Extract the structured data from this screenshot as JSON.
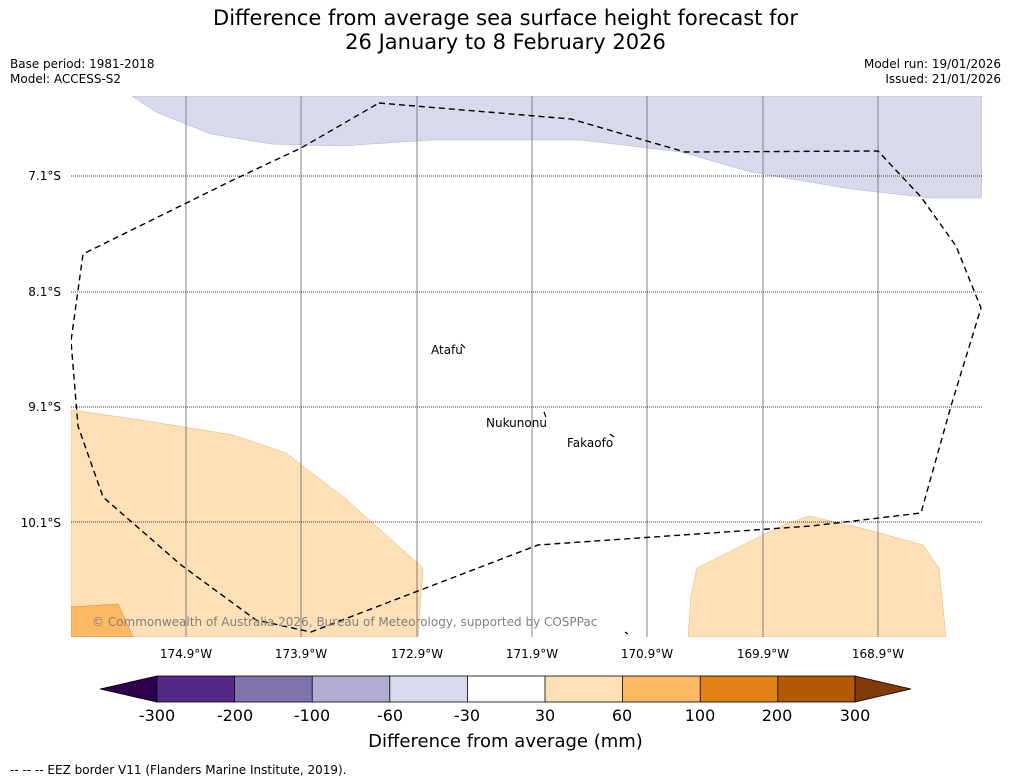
{
  "title": {
    "line1": "Difference from average sea surface height forecast for",
    "line2": "26 January to 8 February 2026"
  },
  "meta": {
    "base_period": "Base period: 1981-2018",
    "model": "Model: ACCESS-S2",
    "model_run": "Model run: 19/01/2026",
    "issued": "Issued: 21/01/2026"
  },
  "lat_labels": [
    "7.1°S",
    "8.1°S",
    "9.1°S",
    "10.1°S"
  ],
  "lon_labels": [
    "174.9°W",
    "173.9°W",
    "172.9°W",
    "171.9°W",
    "170.9°W",
    "169.9°W",
    "168.9°W"
  ],
  "places": {
    "atafu": "Atafu",
    "nukunonu": "Nukunonu",
    "fakaofo": "Fakaofo"
  },
  "copyright": "© Commonwealth of Australia 2026, Bureau of Meteorology, supported by COSPPac",
  "colorbar": {
    "ticks": [
      "-300",
      "-200",
      "-100",
      "-60",
      "-30",
      "30",
      "60",
      "100",
      "200",
      "300"
    ],
    "colors": {
      "below_min": "#2d004b",
      "bin1": "#542788",
      "bin2": "#8073ac",
      "bin3": "#b2abd2",
      "bin4": "#d8daeb",
      "bin5": "#ffffff",
      "bin6": "#fee0b6",
      "bin7": "#fdb863",
      "bin8": "#e08214",
      "bin9": "#b35806",
      "above_max": "#7f3b08"
    },
    "label": "Difference from average (mm)"
  },
  "footer": "--  --  -- EEZ border V11 (Flanders Marine Institute, 2019)."
}
